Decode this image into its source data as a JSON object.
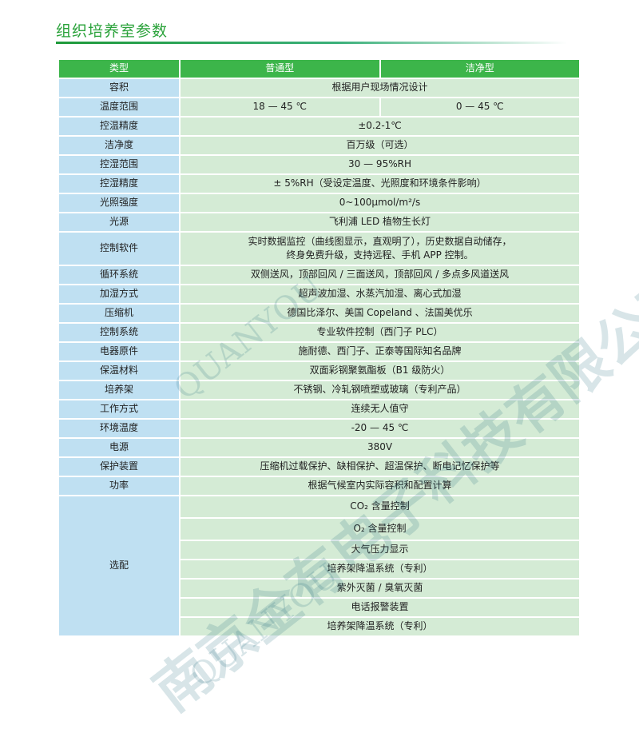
{
  "title": "组织培养室参数",
  "header": [
    "类型",
    "普通型",
    "洁净型"
  ],
  "rows": [
    {
      "k": "容积",
      "v": "根据用户现场情况设计"
    },
    {
      "k": "温度范围",
      "a": "18 — 45 ℃",
      "b": "0 — 45 ℃"
    },
    {
      "k": "控温精度",
      "v": "±0.2-1℃"
    },
    {
      "k": "洁净度",
      "v": "百万级（可选）"
    },
    {
      "k": "控湿范围",
      "v": "30 — 95%RH"
    },
    {
      "k": "控湿精度",
      "v": "± 5%RH（受设定温度、光照度和环境条件影响）"
    },
    {
      "k": "光照强度",
      "v": "0~100μmol/m²/s"
    },
    {
      "k": "光源",
      "v": "飞利浦 LED 植物生长灯"
    },
    {
      "k": "控制软件",
      "v": "实时数据监控（曲线图显示，直观明了），历史数据自动储存，",
      "v2": "终身免费升级，支持远程、手机 APP 控制。"
    },
    {
      "k": "循环系统",
      "v": "双侧送风，顶部回风 / 三面送风，顶部回风 / 多点多风道送风"
    },
    {
      "k": "加湿方式",
      "v": "超声波加湿、水蒸汽加湿、离心式加湿"
    },
    {
      "k": "压缩机",
      "v": "德国比泽尔、美国 Copeland 、法国美优乐"
    },
    {
      "k": "控制系统",
      "v": "专业软件控制（西门子 PLC）"
    },
    {
      "k": "电器原件",
      "v": "施耐德、西门子、正泰等国际知名品牌"
    },
    {
      "k": "保温材料",
      "v": "双面彩钢聚氨酯板（B1 级防火）"
    },
    {
      "k": "培养架",
      "v": "不锈钢、冷轧钢喷塑或玻璃（专利产品）"
    },
    {
      "k": "工作方式",
      "v": "连续无人值守"
    },
    {
      "k": "环境温度",
      "v": "-20 — 45 ℃"
    },
    {
      "k": "电源",
      "v": "380V"
    },
    {
      "k": "保护装置",
      "v": "压缩机过载保护、缺相保护、超温保护、断电记忆保护等"
    },
    {
      "k": "功率",
      "v": "根据气候室内实际容积和配置计算"
    }
  ],
  "options": {
    "k": "选配",
    "items": [
      "CO₂ 含量控制",
      "O₂ 含量控制",
      "大气压力显示",
      "培养架降温系统（专利）",
      "紫外灭菌 / 臭氧灭菌",
      "电话报警装置",
      "培养架降温系统（专利）"
    ]
  },
  "watermark": {
    "en": "QUANYOU",
    "cn": "南京全有电子科技有限公司"
  }
}
